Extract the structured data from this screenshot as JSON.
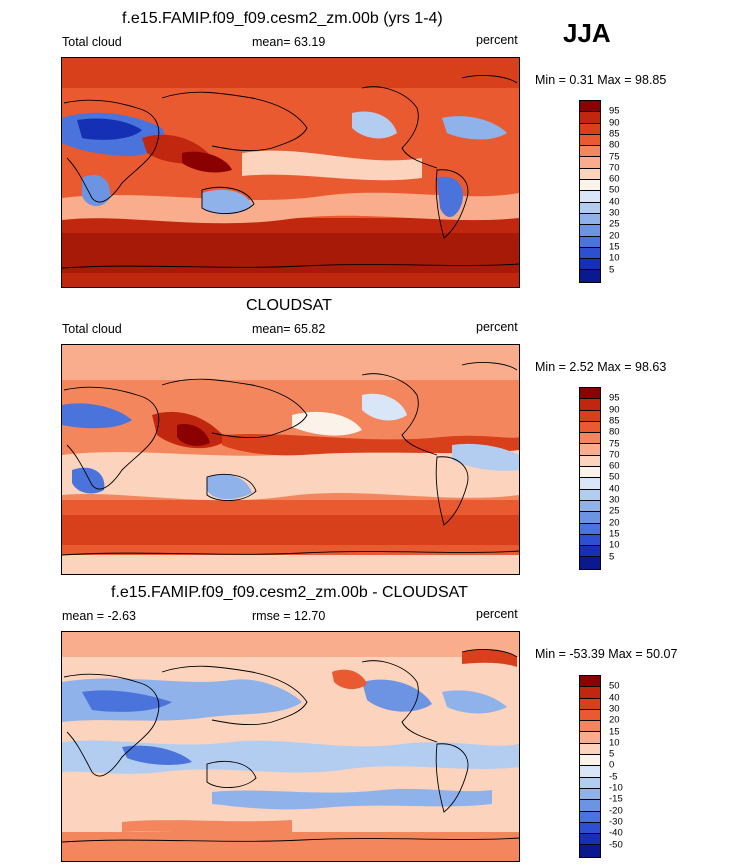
{
  "season": "JJA",
  "panels": [
    {
      "title": "f.e15.FAMIP.f09_f09.cesm2_zm.00b (yrs 1-4)",
      "left_label": "Total cloud",
      "center_label": "mean=  63.19",
      "right_label": "percent",
      "minmax": "Min =   0.31 Max =  98.85",
      "levels": [
        "95",
        "90",
        "85",
        "80",
        "75",
        "70",
        "60",
        "50",
        "40",
        "30",
        "25",
        "20",
        "15",
        "10",
        "5"
      ],
      "colors": [
        "#8b0000",
        "#c1270f",
        "#d8401c",
        "#e95a30",
        "#f4865e",
        "#f9ad8c",
        "#fcd3bc",
        "#fbf2ea",
        "#d9e6f7",
        "#b3cdf0",
        "#8fb2ea",
        "#6c94e3",
        "#4a74dc",
        "#2c50cf",
        "#1530b5",
        "#0a1a8e"
      ]
    },
    {
      "title": "CLOUDSAT",
      "left_label": "Total cloud",
      "center_label": "mean=  65.82",
      "right_label": "percent",
      "minmax": "Min =   2.52 Max =  98.63",
      "levels": [
        "95",
        "90",
        "85",
        "80",
        "75",
        "70",
        "60",
        "50",
        "40",
        "30",
        "25",
        "20",
        "15",
        "10",
        "5"
      ],
      "colors": [
        "#8b0000",
        "#c1270f",
        "#d8401c",
        "#e95a30",
        "#f4865e",
        "#f9ad8c",
        "#fcd3bc",
        "#fbf2ea",
        "#d9e6f7",
        "#b3cdf0",
        "#8fb2ea",
        "#6c94e3",
        "#4a74dc",
        "#2c50cf",
        "#1530b5",
        "#0a1a8e"
      ]
    },
    {
      "title": "f.e15.FAMIP.f09_f09.cesm2_zm.00b - CLOUDSAT",
      "left_label": "mean =  -2.63",
      "center_label": "rmse =  12.70",
      "right_label": "percent",
      "minmax": "Min = -53.39 Max =  50.07",
      "levels": [
        "50",
        "40",
        "30",
        "20",
        "15",
        "10",
        "5",
        "0",
        "-5",
        "-10",
        "-15",
        "-20",
        "-30",
        "-40",
        "-50"
      ],
      "colors": [
        "#8b0000",
        "#c1270f",
        "#d8401c",
        "#e95a30",
        "#f4865e",
        "#f9ad8c",
        "#fcd3bc",
        "#fbf2ea",
        "#d9e6f7",
        "#b3cdf0",
        "#8fb2ea",
        "#6c94e3",
        "#4a74dc",
        "#2c50cf",
        "#1530b5",
        "#0a1a8e"
      ]
    }
  ]
}
